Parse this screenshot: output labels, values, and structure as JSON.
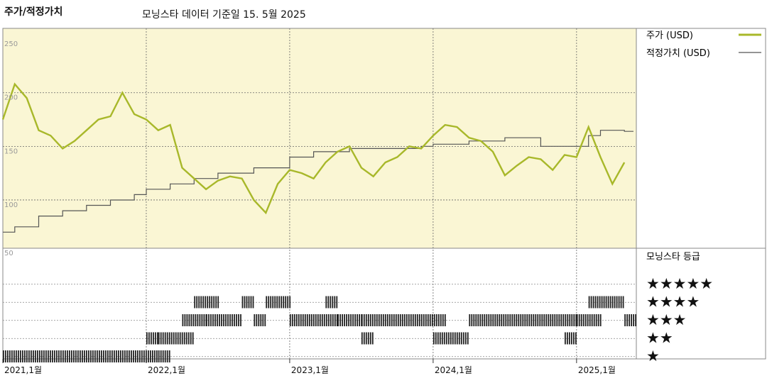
{
  "header": {
    "title": "주가/적정가치",
    "subtitle": "모닝스타 데이터 기준일 15. 5월 2025"
  },
  "legend": {
    "price_label": "주가 (USD)",
    "fair_label": "적정가치 (USD)",
    "rating_title": "모닝스타 등급"
  },
  "colors": {
    "price_line": "#a8b82a",
    "fair_line": "#555555",
    "price_panel_bg": "#faf6d4",
    "rating_bar": "#222222"
  },
  "chart_data": {
    "type": "line",
    "title": "주가/적정가치",
    "subtitle": "모닝스타 데이터 기준일 15. 5월 2025",
    "ylim": [
      55,
      260
    ],
    "y_ticks": [
      {
        "value": 250,
        "label": "250"
      },
      {
        "value": 200,
        "label": "200"
      },
      {
        "value": 150,
        "label": "150"
      },
      {
        "value": 100,
        "label": "100"
      },
      {
        "value": 50,
        "label": "50"
      }
    ],
    "grid": true,
    "x_tick_labels": [
      "2021,1월",
      "2022,1월",
      "2023,1월",
      "2024,1월",
      "2025,1월"
    ],
    "series": [
      {
        "name": "주가 (USD)",
        "x": [
          "2021-01",
          "2021-02",
          "2021-03",
          "2021-04",
          "2021-05",
          "2021-06",
          "2021-07",
          "2021-08",
          "2021-09",
          "2021-10",
          "2021-11",
          "2021-12",
          "2022-01",
          "2022-02",
          "2022-03",
          "2022-04",
          "2022-05",
          "2022-06",
          "2022-07",
          "2022-08",
          "2022-09",
          "2022-10",
          "2022-11",
          "2022-12",
          "2023-01",
          "2023-02",
          "2023-03",
          "2023-04",
          "2023-05",
          "2023-06",
          "2023-07",
          "2023-08",
          "2023-09",
          "2023-10",
          "2023-11",
          "2023-12",
          "2024-01",
          "2024-02",
          "2024-03",
          "2024-04",
          "2024-05",
          "2024-06",
          "2024-07",
          "2024-08",
          "2024-09",
          "2024-10",
          "2024-11",
          "2024-12",
          "2025-01",
          "2025-02",
          "2025-03",
          "2025-04",
          "2025-05"
        ],
        "values": [
          175,
          208,
          195,
          165,
          160,
          148,
          155,
          165,
          175,
          178,
          200,
          180,
          175,
          165,
          170,
          130,
          120,
          110,
          118,
          122,
          120,
          100,
          88,
          115,
          128,
          125,
          120,
          135,
          145,
          150,
          130,
          122,
          135,
          140,
          150,
          148,
          160,
          170,
          168,
          158,
          155,
          145,
          123,
          132,
          140,
          138,
          128,
          142,
          140,
          168,
          140,
          115,
          135
        ]
      },
      {
        "name": "적정가치 (USD)",
        "x": [
          "2021-01",
          "2021-02",
          "2021-04",
          "2021-06",
          "2021-08",
          "2021-10",
          "2021-12",
          "2022-01",
          "2022-03",
          "2022-05",
          "2022-07",
          "2022-10",
          "2023-01",
          "2023-03",
          "2023-06",
          "2023-09",
          "2023-12",
          "2024-01",
          "2024-04",
          "2024-07",
          "2024-10",
          "2025-01",
          "2025-02",
          "2025-03",
          "2025-05"
        ],
        "values": [
          70,
          75,
          85,
          90,
          95,
          100,
          105,
          110,
          115,
          120,
          125,
          130,
          140,
          145,
          148,
          148,
          150,
          152,
          155,
          158,
          150,
          150,
          160,
          165,
          164
        ]
      }
    ],
    "star_rating": {
      "levels": [
        5,
        4,
        3,
        2,
        1
      ],
      "segments": [
        {
          "stars": 1,
          "start": "2021-01",
          "end": "2022-01"
        },
        {
          "stars": 1,
          "start": "2022-02",
          "end": "2022-02"
        },
        {
          "stars": 2,
          "start": "2022-01",
          "end": "2022-01"
        },
        {
          "stars": 2,
          "start": "2022-02",
          "end": "2022-04"
        },
        {
          "stars": 3,
          "start": "2022-04",
          "end": "2022-05"
        },
        {
          "stars": 4,
          "start": "2022-05",
          "end": "2022-06"
        },
        {
          "stars": 3,
          "start": "2022-06",
          "end": "2022-08"
        },
        {
          "stars": 4,
          "start": "2022-09",
          "end": "2022-09"
        },
        {
          "stars": 3,
          "start": "2022-10",
          "end": "2022-10"
        },
        {
          "stars": 4,
          "start": "2022-11",
          "end": "2022-12"
        },
        {
          "stars": 3,
          "start": "2023-01",
          "end": "2023-04"
        },
        {
          "stars": 4,
          "start": "2023-04",
          "end": "2023-04"
        },
        {
          "stars": 3,
          "start": "2023-05",
          "end": "2023-06"
        },
        {
          "stars": 2,
          "start": "2023-07",
          "end": "2023-07"
        },
        {
          "stars": 3,
          "start": "2023-07",
          "end": "2024-01"
        },
        {
          "stars": 2,
          "start": "2024-01",
          "end": "2024-03"
        },
        {
          "stars": 3,
          "start": "2024-04",
          "end": "2024-12"
        },
        {
          "stars": 2,
          "start": "2024-12",
          "end": "2024-12"
        },
        {
          "stars": 3,
          "start": "2025-01",
          "end": "2025-02"
        },
        {
          "stars": 4,
          "start": "2025-02",
          "end": "2025-04"
        },
        {
          "stars": 3,
          "start": "2025-05",
          "end": "2025-05"
        }
      ]
    }
  }
}
